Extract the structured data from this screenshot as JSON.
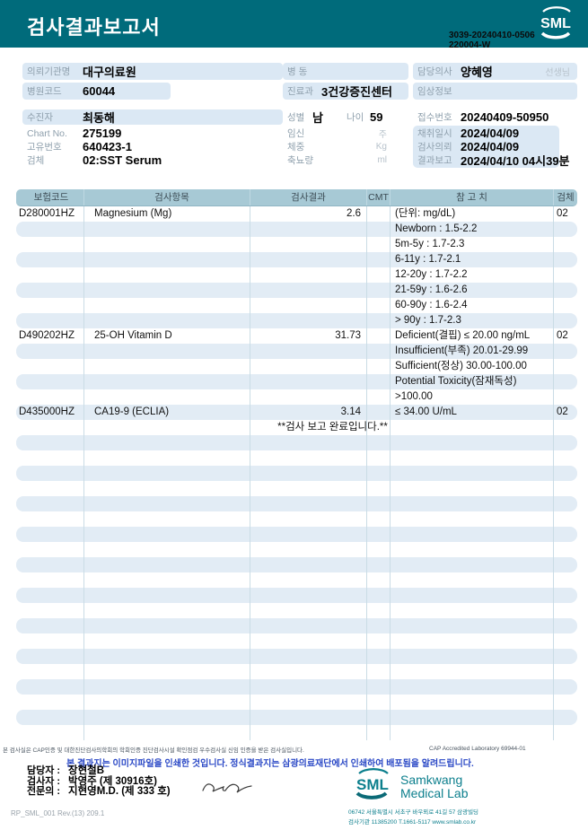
{
  "colors": {
    "header_teal": "#006b7b",
    "logo_teal": "#0c7f8d",
    "pill_bg": "#dbe8f4",
    "row_stripe": "#e2ecf5",
    "table_header_bg": "#a7c9d5",
    "notice_blue": "#2b49c6"
  },
  "header": {
    "title": "검사결과보고서",
    "logo_text": "SML",
    "report_id_line1": "3039-20240410-0506",
    "report_id_line2": "220004-W"
  },
  "info": {
    "left": {
      "org_label": "의뢰기관명",
      "org_value": "대구의료원",
      "hospital_code_label": "병원코드",
      "hospital_code_value": "60044",
      "patient_label": "수진자",
      "patient_value": "최동해",
      "chart_label": "Chart No.",
      "chart_value": "275199",
      "unique_label": "고유번호",
      "unique_value": "640423-1",
      "specimen_label": "검체",
      "specimen_value": "02:SST Serum"
    },
    "middle": {
      "ward_label": "병  동",
      "ward_value": "",
      "dept_label": "진료과",
      "dept_value": "3건강증진센터",
      "sex_label": "성별",
      "sex_value": "남",
      "age_label": "나이",
      "age_value": "59",
      "pregnancy_label": "임신",
      "pregnancy_unit": "주",
      "weight_label": "체중",
      "weight_unit": "Kg",
      "urine_label": "축뇨량",
      "urine_unit": "ml"
    },
    "right": {
      "doctor_label": "담당의사",
      "doctor_value": "양혜영",
      "doctor_suffix": "선생님",
      "clinical_label": "임상정보",
      "clinical_value": "",
      "receipt_label": "접수번호",
      "receipt_value": "20240409-50950",
      "collect_label": "채취일시",
      "collect_value": "2024/04/09",
      "request_label": "검사의뢰",
      "request_value": "2024/04/09",
      "report_label": "결과보고",
      "report_value": "2024/04/10 04시39분"
    }
  },
  "table": {
    "headers": [
      "보험코드",
      "검사항목",
      "검사결과",
      "CMT",
      "참 고 치",
      "검체"
    ],
    "empty_row_count": 20,
    "rows": [
      {
        "code": "D280001HZ",
        "name": "Magnesium (Mg)",
        "result": "2.6",
        "ref": "(단위: mg/dL)",
        "spec": "02"
      },
      {
        "ref": "Newborn : 1.5-2.2"
      },
      {
        "ref": "5m-5y : 1.7-2.3"
      },
      {
        "ref": "6-11y : 1.7-2.1"
      },
      {
        "ref": "12-20y : 1.7-2.2"
      },
      {
        "ref": "21-59y : 1.6-2.6"
      },
      {
        "ref": "60-90y : 1.6-2.4"
      },
      {
        "ref": "> 90y : 1.7-2.3"
      },
      {
        "code": "D490202HZ",
        "name": "25-OH Vitamin D",
        "result": "31.73",
        "ref": "Deficient(결핍) ≤ 20.00 ng/mL",
        "spec": "02"
      },
      {
        "ref": "Insufficient(부족) 20.01-29.99"
      },
      {
        "ref": "Sufficient(정상) 30.00-100.00"
      },
      {
        "ref": "Potential Toxicity(잠재독성)"
      },
      {
        "ref": ">100.00"
      },
      {
        "code": "D435000HZ",
        "name": "CA19-9 (ECLIA)",
        "result": "3.14",
        "ref": "≤ 34.00 U/mL",
        "spec": "02"
      },
      {
        "note": "**검사  보고  완료입니다.**"
      }
    ]
  },
  "footer": {
    "accreditation_note": "본 검사실은 CAP인증 및 대한진단검사의학회의 학회인증 진단검사시설 확인점검 우수검사실 신임 인증을 받은 검사실입니다.",
    "cap_label": "CAP Accredited Laboratory 69944-01",
    "notice": "본 결과지는 이미지파일을 인쇄한 것입니다. 정식결과지는 삼광의료재단에서 인쇄하여 배포됨을 알려드립니다.",
    "signers": [
      {
        "label": "담당자 :",
        "value": "장현철B"
      },
      {
        "label": "검사자 :",
        "value": "박영주 (제 30916호)"
      },
      {
        "label": "전문의 :",
        "value": "지현영M.D. (제 333 호)"
      }
    ],
    "doc_code": "RP_SML_001 Rev.(13) 209.1",
    "lab": {
      "logo_text": "SML",
      "name_line1": "Samkwang",
      "name_line2": "Medical Lab",
      "address": "06742 서울특별시 서초구 바우뫼로 41길 57 삼광빌딩",
      "contact": "검사기관 11385200 T.1661-5117 www.smlab.co.kr"
    }
  }
}
